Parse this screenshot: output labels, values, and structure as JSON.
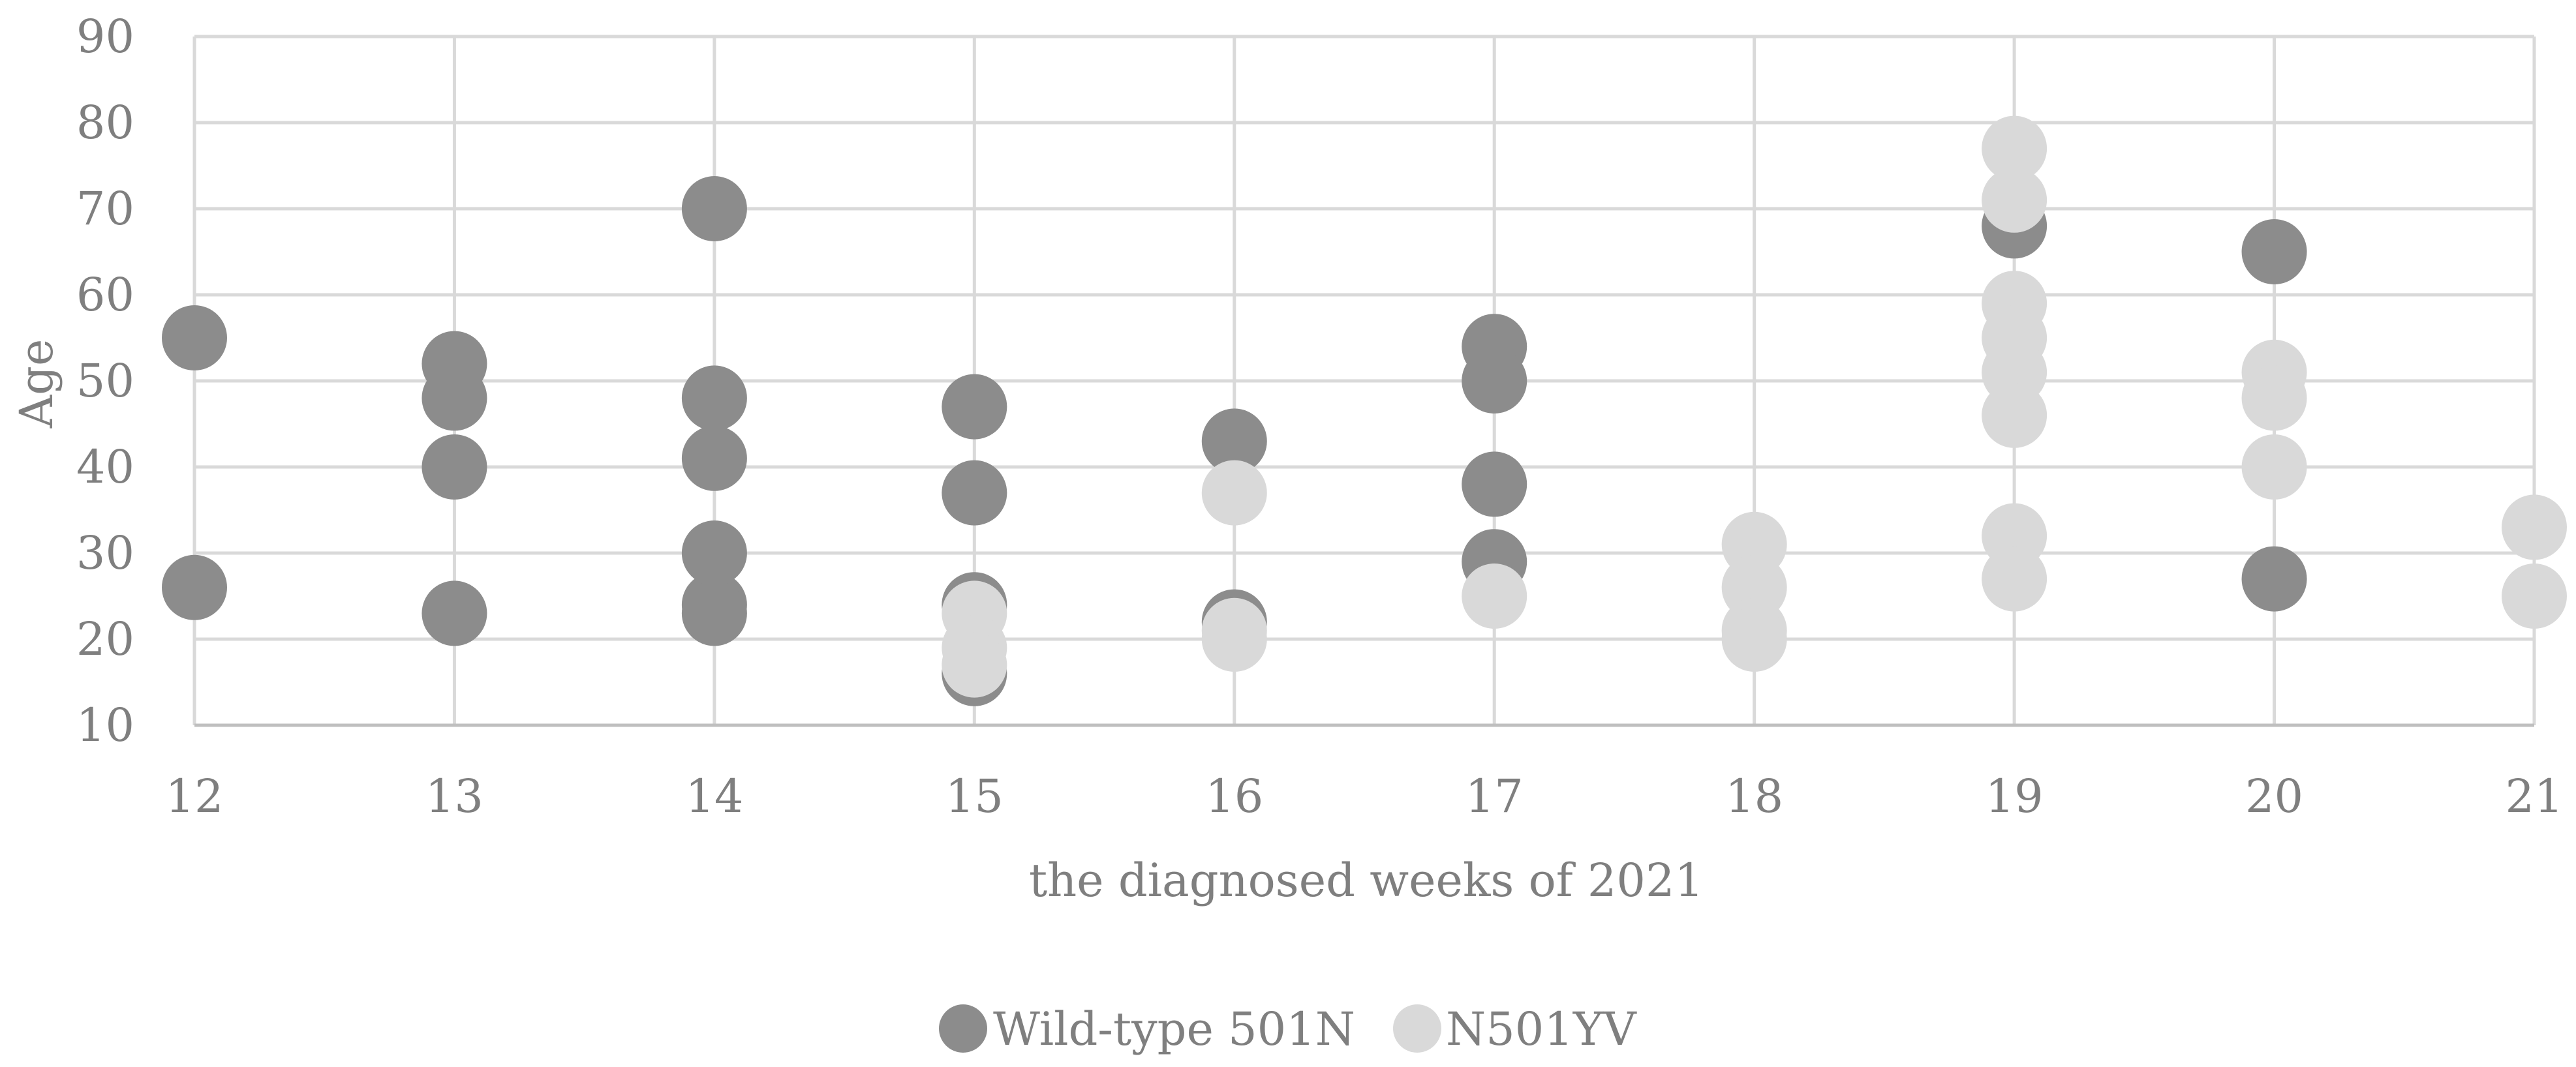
{
  "chart_data": {
    "type": "scatter",
    "title": "",
    "xlabel": "the diagnosed weeks of 2021",
    "ylabel": "Age",
    "xlim": [
      12,
      21
    ],
    "ylim": [
      10,
      90
    ],
    "x_ticks": [
      12,
      13,
      14,
      15,
      16,
      17,
      18,
      19,
      20,
      21
    ],
    "y_ticks": [
      10,
      20,
      30,
      40,
      50,
      60,
      70,
      80,
      90
    ],
    "grid": true,
    "legend_position": "bottom",
    "series": [
      {
        "name": "Wild-type 501N",
        "color": "#8c8c8c",
        "points": [
          [
            12,
            55
          ],
          [
            12,
            26
          ],
          [
            13,
            52
          ],
          [
            13,
            48
          ],
          [
            13,
            40
          ],
          [
            13,
            23
          ],
          [
            14,
            70
          ],
          [
            14,
            48
          ],
          [
            14,
            41
          ],
          [
            14,
            30
          ],
          [
            14,
            24
          ],
          [
            14,
            23
          ],
          [
            15,
            47
          ],
          [
            15,
            37
          ],
          [
            15,
            24
          ],
          [
            15,
            16
          ],
          [
            16,
            43
          ],
          [
            16,
            22
          ],
          [
            17,
            54
          ],
          [
            17,
            50
          ],
          [
            17,
            38
          ],
          [
            17,
            29
          ],
          [
            19,
            68
          ],
          [
            20,
            65
          ],
          [
            20,
            27
          ]
        ]
      },
      {
        "name": "N501YV",
        "color": "#d9d9d9",
        "points": [
          [
            15,
            23
          ],
          [
            15,
            19
          ],
          [
            15,
            17
          ],
          [
            16,
            37
          ],
          [
            16,
            21
          ],
          [
            16,
            20
          ],
          [
            17,
            25
          ],
          [
            18,
            31
          ],
          [
            18,
            26
          ],
          [
            18,
            21
          ],
          [
            18,
            20
          ],
          [
            19,
            77
          ],
          [
            19,
            71
          ],
          [
            19,
            59
          ],
          [
            19,
            55
          ],
          [
            19,
            51
          ],
          [
            19,
            46
          ],
          [
            19,
            32
          ],
          [
            19,
            27
          ],
          [
            20,
            51
          ],
          [
            20,
            48
          ],
          [
            20,
            40
          ],
          [
            21,
            33
          ],
          [
            21,
            25
          ]
        ]
      }
    ]
  }
}
